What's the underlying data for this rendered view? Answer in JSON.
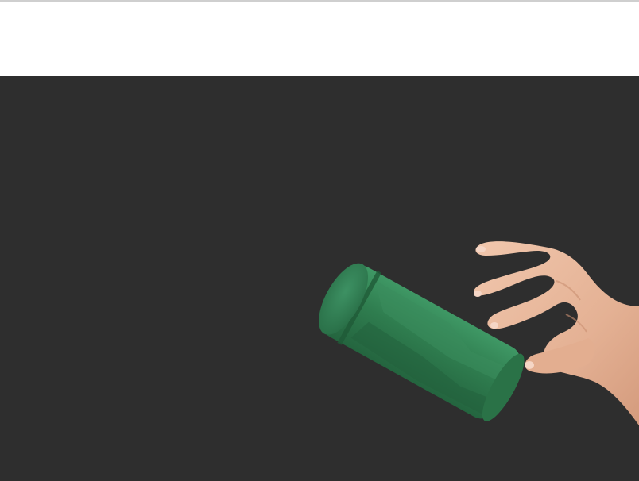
{
  "scene": {
    "background_color": "#2e2e2e",
    "header_color": "#ffffff",
    "object": {
      "name": "green-cylinder",
      "color": "#2f7d4f"
    },
    "hand": {
      "name": "reaching-hand",
      "skin_color": "#e7b79b"
    }
  }
}
